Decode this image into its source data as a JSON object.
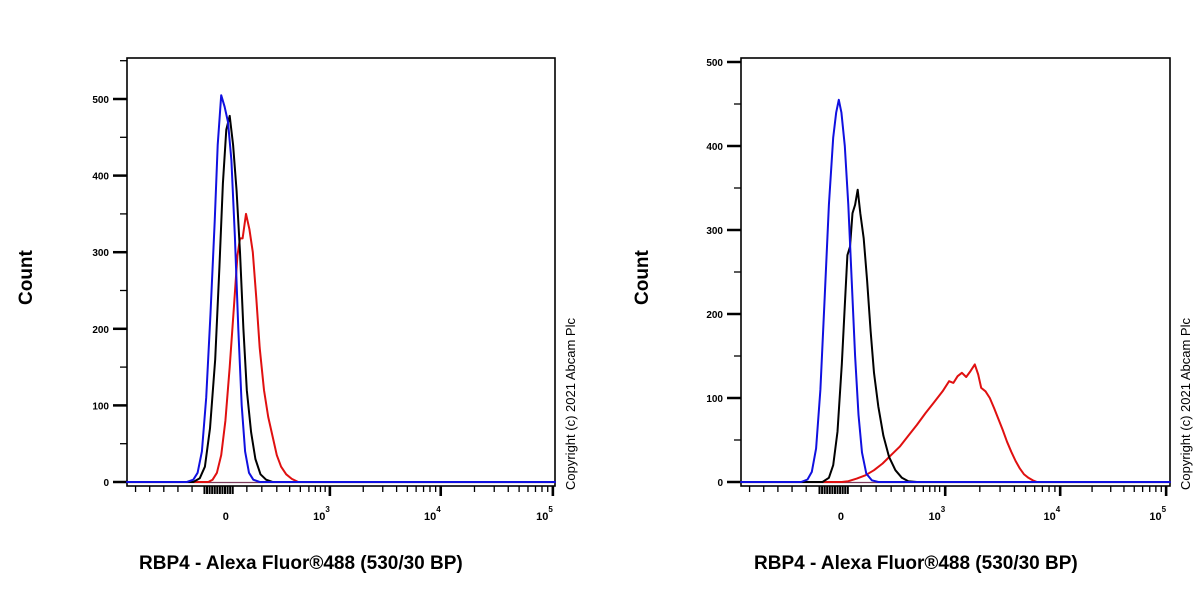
{
  "chart_data": [
    {
      "type": "line",
      "subtype": "flow-cytometry-histogram-overlay",
      "title": "",
      "xlabel": "RBP4 - Alexa Fluor®488 (530/30 BP)",
      "ylabel": "Count",
      "xscale": "biexponential",
      "x_tick_labels": [
        "0",
        "10^3",
        "10^4",
        "10^5"
      ],
      "y_tick_labels": [
        "0",
        "100",
        "200",
        "300",
        "400",
        "500"
      ],
      "ylim": [
        0,
        550
      ],
      "grid": false,
      "legend": null,
      "annotation": "Copyright (c) 2021 Abcam Plc",
      "series": [
        {
          "name": "blue",
          "color": "#1010e0",
          "x_note": "x in axis-fraction (0=left edge,1=right edge); 0 at 0.231, 10^3 at 0.474",
          "points": [
            [
              0.0,
              0
            ],
            [
              0.14,
              0
            ],
            [
              0.155,
              3
            ],
            [
              0.165,
              12
            ],
            [
              0.175,
              40
            ],
            [
              0.185,
              110
            ],
            [
              0.195,
              220
            ],
            [
              0.205,
              340
            ],
            [
              0.212,
              440
            ],
            [
              0.22,
              505
            ],
            [
              0.228,
              490
            ],
            [
              0.236,
              470
            ],
            [
              0.244,
              420
            ],
            [
              0.252,
              320
            ],
            [
              0.26,
              200
            ],
            [
              0.268,
              100
            ],
            [
              0.276,
              40
            ],
            [
              0.285,
              12
            ],
            [
              0.295,
              3
            ],
            [
              0.31,
              0
            ],
            [
              1.0,
              0
            ]
          ]
        },
        {
          "name": "black",
          "color": "#000000",
          "points": [
            [
              0.0,
              0
            ],
            [
              0.155,
              0
            ],
            [
              0.17,
              5
            ],
            [
              0.182,
              20
            ],
            [
              0.194,
              70
            ],
            [
              0.206,
              160
            ],
            [
              0.216,
              280
            ],
            [
              0.224,
              390
            ],
            [
              0.232,
              460
            ],
            [
              0.24,
              478
            ],
            [
              0.248,
              440
            ],
            [
              0.256,
              380
            ],
            [
              0.264,
              300
            ],
            [
              0.272,
              200
            ],
            [
              0.28,
              120
            ],
            [
              0.29,
              65
            ],
            [
              0.3,
              30
            ],
            [
              0.312,
              10
            ],
            [
              0.325,
              3
            ],
            [
              0.34,
              0
            ],
            [
              1.0,
              0
            ]
          ]
        },
        {
          "name": "red",
          "color": "#e01010",
          "points": [
            [
              0.0,
              0
            ],
            [
              0.19,
              0
            ],
            [
              0.2,
              3
            ],
            [
              0.21,
              12
            ],
            [
              0.22,
              35
            ],
            [
              0.23,
              80
            ],
            [
              0.24,
              150
            ],
            [
              0.25,
              230
            ],
            [
              0.258,
              295
            ],
            [
              0.264,
              318
            ],
            [
              0.27,
              318
            ],
            [
              0.278,
              350
            ],
            [
              0.286,
              330
            ],
            [
              0.294,
              300
            ],
            [
              0.302,
              240
            ],
            [
              0.31,
              175
            ],
            [
              0.32,
              120
            ],
            [
              0.33,
              85
            ],
            [
              0.34,
              60
            ],
            [
              0.35,
              35
            ],
            [
              0.36,
              20
            ],
            [
              0.372,
              10
            ],
            [
              0.385,
              4
            ],
            [
              0.4,
              0
            ],
            [
              1.0,
              0
            ]
          ]
        }
      ]
    },
    {
      "type": "line",
      "subtype": "flow-cytometry-histogram-overlay",
      "title": "",
      "xlabel": "RBP4 - Alexa Fluor®488 (530/30 BP)",
      "ylabel": "Count",
      "xscale": "biexponential",
      "x_tick_labels": [
        "0",
        "10^3",
        "10^4",
        "10^5"
      ],
      "y_tick_labels": [
        "0",
        "100",
        "200",
        "300",
        "400",
        "500"
      ],
      "ylim": [
        0,
        500
      ],
      "grid": false,
      "legend": null,
      "annotation": "Copyright (c) 2021 Abcam Plc",
      "series": [
        {
          "name": "blue",
          "color": "#1010e0",
          "x_note": "x in axis-fraction; 0 at 0.233, 10^3 at 0.476, 10^4 at 0.744",
          "points": [
            [
              0.0,
              0
            ],
            [
              0.14,
              0
            ],
            [
              0.155,
              3
            ],
            [
              0.165,
              12
            ],
            [
              0.175,
              40
            ],
            [
              0.185,
              110
            ],
            [
              0.195,
              220
            ],
            [
              0.205,
              330
            ],
            [
              0.215,
              410
            ],
            [
              0.222,
              440
            ],
            [
              0.228,
              455
            ],
            [
              0.234,
              440
            ],
            [
              0.242,
              400
            ],
            [
              0.25,
              330
            ],
            [
              0.258,
              240
            ],
            [
              0.266,
              150
            ],
            [
              0.274,
              80
            ],
            [
              0.282,
              35
            ],
            [
              0.292,
              10
            ],
            [
              0.305,
              2
            ],
            [
              0.32,
              0
            ],
            [
              1.0,
              0
            ]
          ]
        },
        {
          "name": "black",
          "color": "#000000",
          "points": [
            [
              0.0,
              0
            ],
            [
              0.19,
              0
            ],
            [
              0.205,
              5
            ],
            [
              0.215,
              20
            ],
            [
              0.225,
              60
            ],
            [
              0.235,
              140
            ],
            [
              0.242,
              210
            ],
            [
              0.248,
              270
            ],
            [
              0.254,
              280
            ],
            [
              0.26,
              320
            ],
            [
              0.266,
              330
            ],
            [
              0.272,
              348
            ],
            [
              0.278,
              320
            ],
            [
              0.286,
              290
            ],
            [
              0.294,
              240
            ],
            [
              0.302,
              180
            ],
            [
              0.31,
              130
            ],
            [
              0.32,
              90
            ],
            [
              0.332,
              55
            ],
            [
              0.345,
              30
            ],
            [
              0.36,
              14
            ],
            [
              0.375,
              5
            ],
            [
              0.39,
              1
            ],
            [
              0.41,
              0
            ],
            [
              1.0,
              0
            ]
          ]
        },
        {
          "name": "red",
          "color": "#e01010",
          "points": [
            [
              0.0,
              0
            ],
            [
              0.235,
              0
            ],
            [
              0.25,
              1
            ],
            [
              0.27,
              4
            ],
            [
              0.29,
              8
            ],
            [
              0.31,
              14
            ],
            [
              0.33,
              22
            ],
            [
              0.35,
              32
            ],
            [
              0.37,
              42
            ],
            [
              0.39,
              55
            ],
            [
              0.41,
              68
            ],
            [
              0.43,
              82
            ],
            [
              0.45,
              95
            ],
            [
              0.47,
              108
            ],
            [
              0.485,
              120
            ],
            [
              0.495,
              118
            ],
            [
              0.505,
              126
            ],
            [
              0.515,
              130
            ],
            [
              0.525,
              125
            ],
            [
              0.535,
              132
            ],
            [
              0.545,
              140
            ],
            [
              0.553,
              128
            ],
            [
              0.56,
              112
            ],
            [
              0.57,
              108
            ],
            [
              0.58,
              100
            ],
            [
              0.59,
              88
            ],
            [
              0.6,
              75
            ],
            [
              0.61,
              62
            ],
            [
              0.62,
              48
            ],
            [
              0.63,
              36
            ],
            [
              0.64,
              25
            ],
            [
              0.65,
              16
            ],
            [
              0.66,
              9
            ],
            [
              0.67,
              5
            ],
            [
              0.68,
              2
            ],
            [
              0.69,
              0
            ],
            [
              1.0,
              0
            ]
          ]
        }
      ]
    }
  ],
  "panels": [
    {
      "ylabel": "Count",
      "xlabel": "RBP4 - Alexa Fluor®488 (530/30 BP)",
      "copyright": "Copyright (c) 2021 Abcam Plc",
      "x_ticks": [
        {
          "label": "0",
          "exp": ""
        },
        {
          "label": "10",
          "exp": "3"
        },
        {
          "label": "10",
          "exp": "4"
        },
        {
          "label": "10",
          "exp": "5"
        }
      ],
      "y_ticks": [
        "0",
        "100",
        "200",
        "300",
        "400",
        "500"
      ]
    },
    {
      "ylabel": "Count",
      "xlabel": "RBP4 - Alexa Fluor®488 (530/30 BP)",
      "copyright": "Copyright (c) 2021 Abcam Plc",
      "x_ticks": [
        {
          "label": "0",
          "exp": ""
        },
        {
          "label": "10",
          "exp": "3"
        },
        {
          "label": "10",
          "exp": "4"
        },
        {
          "label": "10",
          "exp": "5"
        }
      ],
      "y_ticks": [
        "0",
        "100",
        "200",
        "300",
        "400",
        "500"
      ]
    }
  ]
}
